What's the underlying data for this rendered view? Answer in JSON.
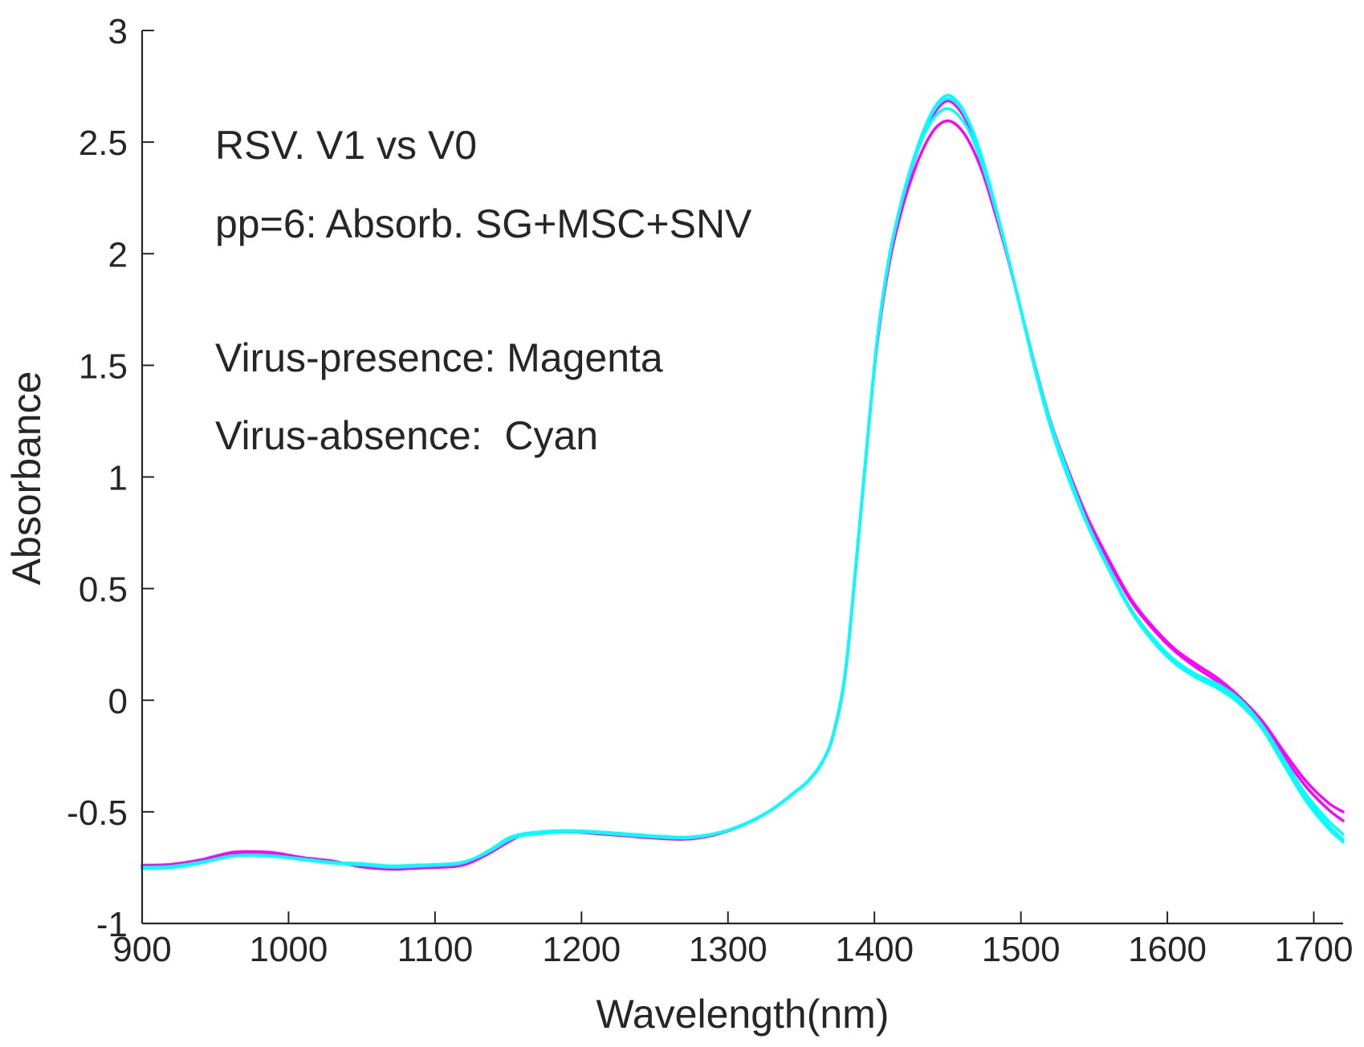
{
  "chart_data": {
    "type": "line",
    "xlabel": "Wavelength(nm)",
    "ylabel": "Absorbance",
    "xlim": [
      900,
      1720
    ],
    "ylim": [
      -1,
      3
    ],
    "x_ticks": [
      900,
      1000,
      1100,
      1200,
      1300,
      1400,
      1500,
      1600,
      1700
    ],
    "y_ticks": [
      -1,
      -0.5,
      0,
      0.5,
      1,
      1.5,
      2,
      2.5,
      3
    ],
    "grid": false,
    "annotations": [
      "RSV. V1 vs V0",
      "pp=6: Absorb. SG+MSC+SNV",
      "Virus-presence: Magenta",
      "Virus-absence:  Cyan"
    ],
    "x": [
      900,
      920,
      940,
      960,
      975,
      990,
      1010,
      1030,
      1050,
      1070,
      1090,
      1110,
      1120,
      1130,
      1140,
      1150,
      1160,
      1175,
      1190,
      1210,
      1230,
      1250,
      1270,
      1285,
      1300,
      1315,
      1330,
      1345,
      1355,
      1365,
      1372,
      1380,
      1388,
      1395,
      1402,
      1410,
      1418,
      1426,
      1434,
      1442,
      1450,
      1458,
      1466,
      1474,
      1482,
      1490,
      1500,
      1510,
      1520,
      1530,
      1545,
      1560,
      1575,
      1590,
      1605,
      1620,
      1635,
      1650,
      1665,
      1680,
      1695,
      1710,
      1720
    ],
    "series": [
      {
        "color": "#ff00ff",
        "values": [
          -0.74,
          -0.735,
          -0.715,
          -0.683,
          -0.678,
          -0.683,
          -0.705,
          -0.72,
          -0.747,
          -0.757,
          -0.752,
          -0.747,
          -0.737,
          -0.71,
          -0.675,
          -0.635,
          -0.605,
          -0.595,
          -0.59,
          -0.595,
          -0.605,
          -0.615,
          -0.62,
          -0.61,
          -0.585,
          -0.545,
          -0.49,
          -0.415,
          -0.36,
          -0.27,
          -0.15,
          0.12,
          0.65,
          1.15,
          1.6,
          1.95,
          2.18,
          2.35,
          2.48,
          2.565,
          2.595,
          2.565,
          2.485,
          2.36,
          2.19,
          2.005,
          1.75,
          1.49,
          1.255,
          1.07,
          0.825,
          0.63,
          0.455,
          0.33,
          0.23,
          0.16,
          0.095,
          0.01,
          -0.095,
          -0.235,
          -0.365,
          -0.46,
          -0.5
        ]
      },
      {
        "color": "#ff00ff",
        "values": [
          -0.745,
          -0.74,
          -0.72,
          -0.687,
          -0.682,
          -0.687,
          -0.71,
          -0.725,
          -0.743,
          -0.753,
          -0.748,
          -0.743,
          -0.733,
          -0.705,
          -0.67,
          -0.63,
          -0.605,
          -0.595,
          -0.59,
          -0.598,
          -0.608,
          -0.618,
          -0.623,
          -0.612,
          -0.586,
          -0.545,
          -0.49,
          -0.415,
          -0.36,
          -0.272,
          -0.155,
          0.11,
          0.64,
          1.14,
          1.62,
          1.975,
          2.21,
          2.39,
          2.54,
          2.64,
          2.685,
          2.645,
          2.55,
          2.4,
          2.22,
          2.02,
          1.75,
          1.48,
          1.245,
          1.06,
          0.815,
          0.62,
          0.445,
          0.32,
          0.22,
          0.145,
          0.08,
          0.0,
          -0.11,
          -0.255,
          -0.39,
          -0.49,
          -0.54
        ]
      },
      {
        "color": "#00ffff",
        "values": [
          -0.755,
          -0.75,
          -0.73,
          -0.7,
          -0.695,
          -0.7,
          -0.712,
          -0.727,
          -0.735,
          -0.745,
          -0.74,
          -0.735,
          -0.725,
          -0.7,
          -0.663,
          -0.62,
          -0.6,
          -0.59,
          -0.585,
          -0.59,
          -0.6,
          -0.61,
          -0.615,
          -0.605,
          -0.582,
          -0.543,
          -0.49,
          -0.415,
          -0.362,
          -0.272,
          -0.148,
          0.125,
          0.66,
          1.16,
          1.625,
          1.985,
          2.22,
          2.41,
          2.56,
          2.665,
          2.71,
          2.67,
          2.57,
          2.42,
          2.23,
          2.02,
          1.745,
          1.47,
          1.23,
          1.035,
          0.79,
          0.585,
          0.4,
          0.265,
          0.165,
          0.1,
          0.05,
          -0.02,
          -0.13,
          -0.29,
          -0.44,
          -0.56,
          -0.625
        ]
      },
      {
        "color": "#00ffff",
        "values": [
          -0.752,
          -0.747,
          -0.727,
          -0.7,
          -0.694,
          -0.699,
          -0.715,
          -0.73,
          -0.738,
          -0.748,
          -0.743,
          -0.737,
          -0.727,
          -0.698,
          -0.66,
          -0.618,
          -0.598,
          -0.588,
          -0.584,
          -0.589,
          -0.598,
          -0.608,
          -0.614,
          -0.605,
          -0.583,
          -0.544,
          -0.489,
          -0.414,
          -0.358,
          -0.268,
          -0.146,
          0.125,
          0.655,
          1.155,
          1.625,
          1.985,
          2.225,
          2.41,
          2.555,
          2.655,
          2.695,
          2.66,
          2.565,
          2.415,
          2.225,
          2.02,
          1.745,
          1.475,
          1.235,
          1.045,
          0.795,
          0.59,
          0.41,
          0.28,
          0.18,
          0.115,
          0.07,
          0.0,
          -0.115,
          -0.27,
          -0.425,
          -0.54,
          -0.6
        ]
      },
      {
        "color": "#00ffff",
        "values": [
          -0.748,
          -0.744,
          -0.725,
          -0.698,
          -0.692,
          -0.697,
          -0.711,
          -0.726,
          -0.732,
          -0.742,
          -0.738,
          -0.733,
          -0.724,
          -0.701,
          -0.667,
          -0.627,
          -0.606,
          -0.596,
          -0.59,
          -0.594,
          -0.604,
          -0.613,
          -0.618,
          -0.608,
          -0.584,
          -0.546,
          -0.491,
          -0.417,
          -0.362,
          -0.272,
          -0.152,
          0.115,
          0.645,
          1.145,
          1.615,
          1.975,
          2.215,
          2.395,
          2.535,
          2.62,
          2.65,
          2.615,
          2.53,
          2.39,
          2.215,
          2.015,
          1.75,
          1.485,
          1.25,
          1.06,
          0.8,
          0.595,
          0.41,
          0.275,
          0.17,
          0.105,
          0.06,
          -0.01,
          -0.13,
          -0.295,
          -0.455,
          -0.575,
          -0.635
        ]
      }
    ]
  }
}
